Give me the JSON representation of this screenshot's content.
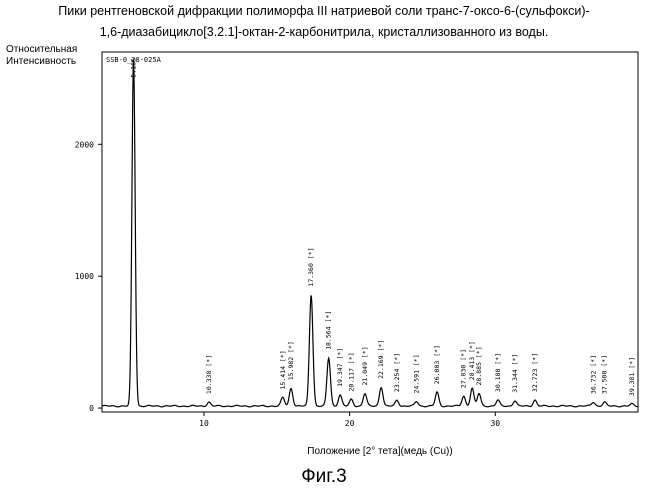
{
  "header": {
    "line1": "Пики рентгеновской дифракции полиморфа III натриевой соли транс-7-оксо-6-(сульфокси)-",
    "line2": "1,6-диазабицикло[3.2.1]-октан-2-карбонитрила, кристаллизованного из воды."
  },
  "figure_label": "Фиг.3",
  "chart_data": {
    "type": "line",
    "title": "SSB-0_28-025A",
    "ylabel": "Относительная Интенсивность",
    "xlabel": "Положение [2° тета](медь (Cu))",
    "xlim": [
      3.0,
      39.8
    ],
    "ylim": [
      -30,
      2700
    ],
    "x_ticks": [
      10,
      20,
      30
    ],
    "y_ticks": [
      0,
      1000,
      2000
    ],
    "grid": false,
    "baseline": 15,
    "peaks": [
      {
        "x": 5.165,
        "y": 2650,
        "label": "5.165"
      },
      {
        "x": 10.338,
        "y": 45,
        "label": "10.338 [*]"
      },
      {
        "x": 15.414,
        "y": 80,
        "label": "15.414 [*]"
      },
      {
        "x": 15.982,
        "y": 150,
        "label": "15.982 [*]"
      },
      {
        "x": 17.36,
        "y": 860,
        "label": "17.360 [*]"
      },
      {
        "x": 18.564,
        "y": 380,
        "label": "18.564 [*]"
      },
      {
        "x": 19.347,
        "y": 100,
        "label": "19.347 [*]"
      },
      {
        "x": 20.117,
        "y": 65,
        "label": "20.117 [*]"
      },
      {
        "x": 21.049,
        "y": 110,
        "label": "21.049 [*]"
      },
      {
        "x": 22.169,
        "y": 160,
        "label": "22.169 [*]"
      },
      {
        "x": 23.254,
        "y": 60,
        "label": "23.254 [*]"
      },
      {
        "x": 24.591,
        "y": 50,
        "label": "24.591 [*]"
      },
      {
        "x": 26.003,
        "y": 120,
        "label": "26.003 [*]"
      },
      {
        "x": 27.83,
        "y": 90,
        "label": "27.830 [*]"
      },
      {
        "x": 28.413,
        "y": 150,
        "label": "28.413 [*]"
      },
      {
        "x": 28.885,
        "y": 110,
        "label": "28.885 [*]"
      },
      {
        "x": 30.18,
        "y": 60,
        "label": "30.180 [*]"
      },
      {
        "x": 31.344,
        "y": 55,
        "label": "31.344 [*]"
      },
      {
        "x": 32.723,
        "y": 60,
        "label": "32.723 [*]"
      },
      {
        "x": 36.732,
        "y": 45,
        "label": "36.732 [*]"
      },
      {
        "x": 37.5,
        "y": 45,
        "label": "37.500 [*]"
      },
      {
        "x": 39.381,
        "y": 30,
        "label": "39.381 [*]"
      }
    ]
  }
}
